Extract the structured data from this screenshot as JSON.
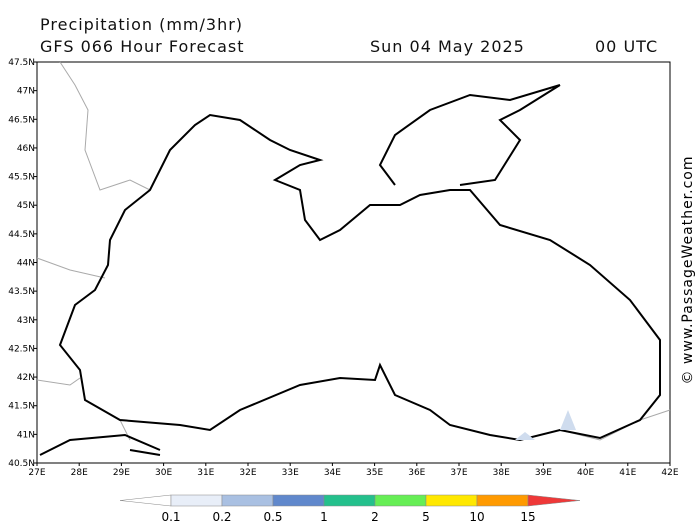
{
  "header": {
    "title": "Precipitation (mm/3hr)",
    "subtitle": "GFS 066 Hour Forecast",
    "date": "Sun 04 May 2025",
    "time": "00 UTC"
  },
  "map": {
    "lon_ticks": [
      "27E",
      "28E",
      "29E",
      "30E",
      "31E",
      "32E",
      "33E",
      "34E",
      "35E",
      "36E",
      "37E",
      "38E",
      "39E",
      "40E",
      "41E",
      "42E"
    ],
    "lat_ticks": [
      "47.5N",
      "47N",
      "46.5N",
      "46N",
      "45.5N",
      "45N",
      "44.5N",
      "44N",
      "43.5N",
      "43N",
      "42.5N",
      "42N",
      "41.5N",
      "41N",
      "40.5N"
    ]
  },
  "legend": {
    "labels": [
      0.1,
      0.2,
      0.5,
      1,
      2,
      5,
      10,
      15
    ],
    "colors": [
      "#ffffff",
      "#e8eef8",
      "#a9c0e2",
      "#6088cc",
      "#24c08c",
      "#66ee55",
      "#ffe800",
      "#ff9a00",
      "#ee3838"
    ]
  },
  "watermark": "© www.PassageWeather.com"
}
